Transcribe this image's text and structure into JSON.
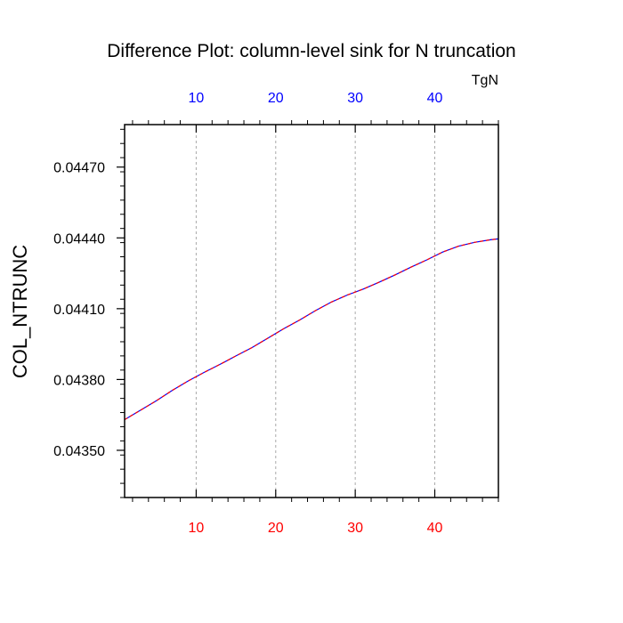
{
  "chart_data": {
    "type": "line",
    "title": "Difference Plot: column-level sink for N truncation",
    "ylabel": "COL_NTRUNC",
    "top_axis_label": "TgN",
    "xlim": [
      1,
      48
    ],
    "ylim": [
      0.0433,
      0.04488
    ],
    "x_ticks": [
      10,
      20,
      30,
      40
    ],
    "x_tick_labels": [
      "10",
      "20",
      "30",
      "40"
    ],
    "top_tick_labels": [
      "10",
      "20",
      "30",
      "40"
    ],
    "y_ticks": [
      0.0435,
      0.0438,
      0.0441,
      0.0444,
      0.0447
    ],
    "y_tick_labels": [
      "0.04350",
      "0.04380",
      "0.04410",
      "0.04440",
      "0.04470"
    ],
    "grid": "vertical dashed at x ticks",
    "colors": {
      "bottom_tick_labels": "#ff0000",
      "top_tick_labels": "#0000ff",
      "line_primary": "#0000ff",
      "line_dashed": "#ff0000",
      "grid": "#aaaaaa",
      "axis": "#000000"
    },
    "series": [
      {
        "x": [
          1,
          3,
          5,
          7,
          9,
          11,
          13,
          15,
          17,
          19,
          21,
          23,
          25,
          27,
          29,
          31,
          33,
          35,
          37,
          39,
          41,
          43,
          45,
          47,
          48
        ],
        "y": [
          0.04363,
          0.04367,
          0.04371,
          0.043754,
          0.043794,
          0.04383,
          0.043864,
          0.0439,
          0.043935,
          0.043975,
          0.044015,
          0.044052,
          0.044092,
          0.044128,
          0.044158,
          0.044183,
          0.044212,
          0.044243,
          0.044276,
          0.044307,
          0.04434,
          0.044365,
          0.044381,
          0.044392,
          0.044396
        ]
      }
    ]
  }
}
